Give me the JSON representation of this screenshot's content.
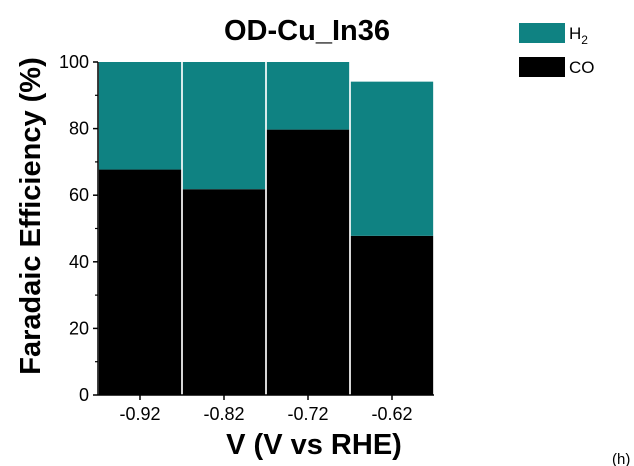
{
  "chart_data": {
    "type": "bar",
    "stacked": true,
    "title": "OD-Cu_In36",
    "xlabel": "V (V vs RHE)",
    "ylabel": "Faradaic Efficiency (%)",
    "categories": [
      "-0.92",
      "-0.82",
      "-0.72",
      "-0.62"
    ],
    "ylim": [
      0,
      100
    ],
    "yticks": [
      0,
      20,
      40,
      60,
      80,
      100
    ],
    "grid": false,
    "legend_position": "top-right",
    "series": [
      {
        "name": "CO",
        "label_main": "CO",
        "label_sub": "",
        "color": "#000000",
        "values": [
          67.7,
          61.8,
          79.7,
          47.8
        ]
      },
      {
        "name": "H2",
        "label_main": "H",
        "label_sub": "2",
        "color": "#0f8282",
        "values": [
          32.3,
          38.2,
          20.3,
          46.3
        ]
      }
    ],
    "corner_label": "(h)"
  }
}
